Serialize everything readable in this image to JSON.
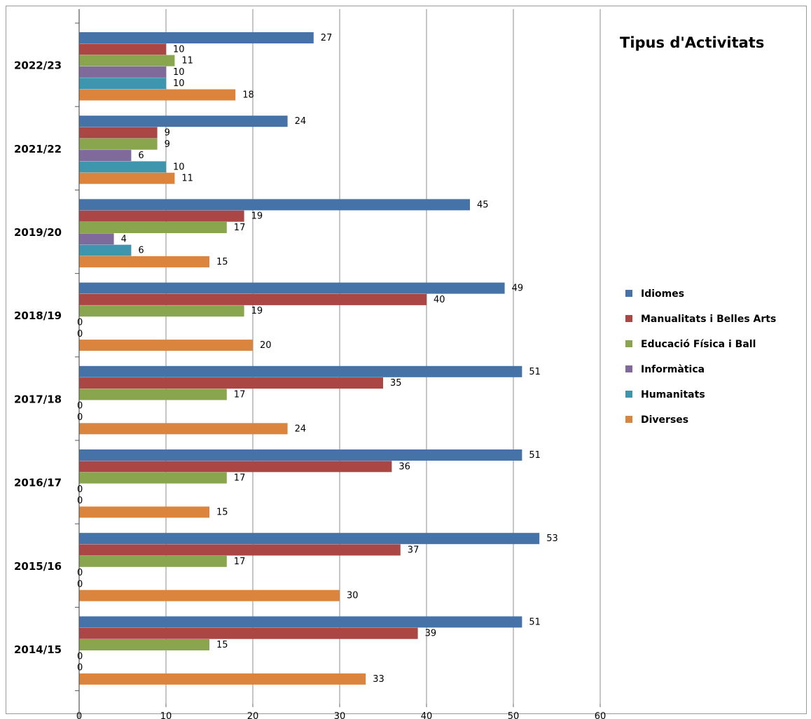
{
  "chart_data": {
    "type": "bar",
    "orientation": "horizontal",
    "title": "Tipus d'Activitats",
    "categories": [
      "2022/23",
      "2021/22",
      "2019/20",
      "2018/19",
      "2017/18",
      "2016/17",
      "2015/16",
      "2014/15"
    ],
    "series": [
      {
        "name": "Idiomes",
        "color": "#4572A7",
        "values": [
          27,
          24,
          45,
          49,
          51,
          51,
          53,
          51
        ]
      },
      {
        "name": "Manualitats i Belles Arts",
        "color": "#AA4643",
        "values": [
          10,
          9,
          19,
          40,
          35,
          36,
          37,
          39
        ]
      },
      {
        "name": "Educació Física i Ball",
        "color": "#89A54E",
        "values": [
          11,
          9,
          17,
          19,
          17,
          17,
          17,
          15
        ]
      },
      {
        "name": "Informàtica",
        "color": "#80699B",
        "values": [
          10,
          6,
          4,
          0,
          0,
          0,
          0,
          0
        ]
      },
      {
        "name": "Humanitats",
        "color": "#3D96AE",
        "values": [
          10,
          10,
          6,
          0,
          0,
          0,
          0,
          0
        ]
      },
      {
        "name": "Diverses",
        "color": "#DB843D",
        "values": [
          18,
          11,
          15,
          20,
          24,
          15,
          30,
          33
        ]
      }
    ],
    "xlim": [
      0,
      60
    ],
    "xticks": [
      0,
      10,
      20,
      30,
      40,
      50,
      60
    ],
    "xlabel": "",
    "ylabel": "",
    "grid": "vertical",
    "legend": "right"
  }
}
